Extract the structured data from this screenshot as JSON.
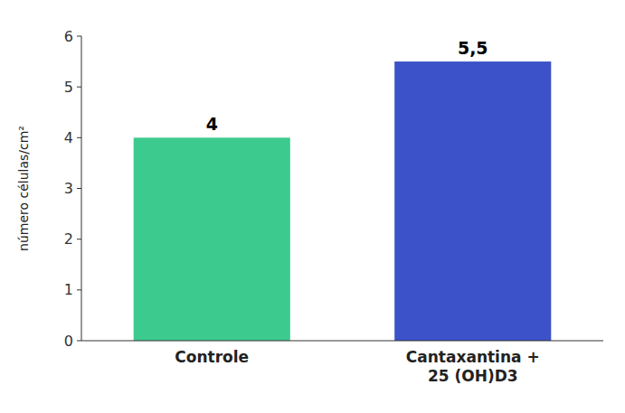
{
  "chart_data": {
    "type": "bar",
    "y_label": "número células/cm²",
    "categories": [
      "Controle",
      "Cantaxantina +\n25 (OH)D3"
    ],
    "values": [
      4,
      5.5
    ],
    "value_labels": [
      "4",
      "5,5"
    ],
    "data_labels": true,
    "colors": [
      "#3dca8e",
      "#3b52c8"
    ],
    "ylim": [
      0,
      6
    ],
    "yticks": [
      0,
      1,
      2,
      3,
      4,
      5,
      6
    ],
    "grid": false
  }
}
